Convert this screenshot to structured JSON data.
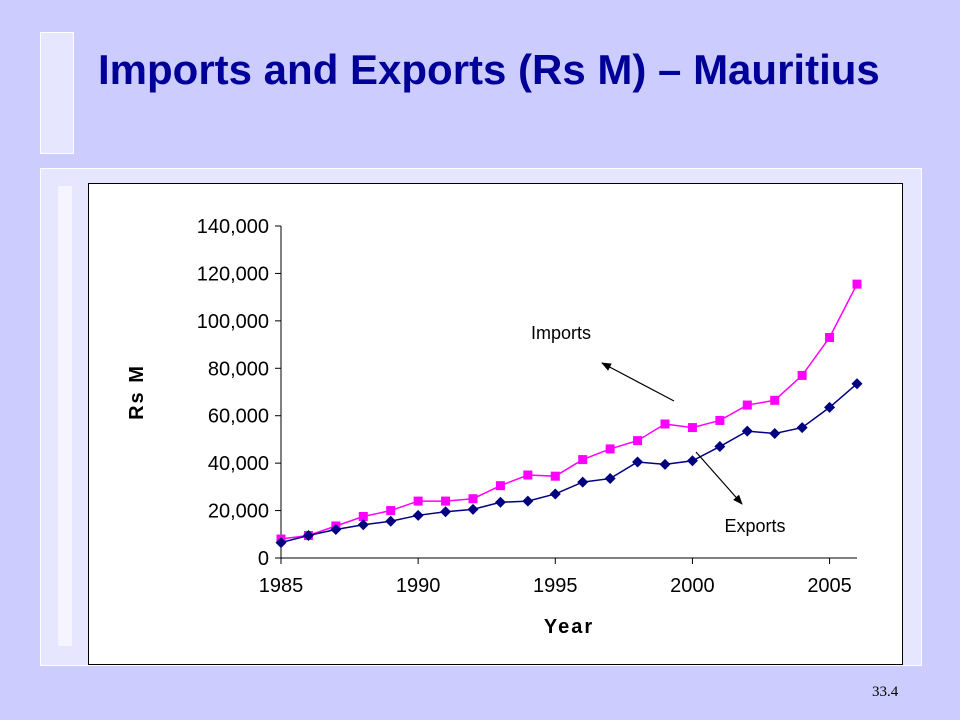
{
  "slide": {
    "title": "Imports and Exports (Rs M) – Mauritius",
    "page_number": "33.4"
  },
  "chart_data": {
    "type": "line",
    "title": "",
    "xlabel": "Year",
    "ylabel": "Rs M",
    "xlim": [
      1985,
      2006
    ],
    "ylim": [
      0,
      140000
    ],
    "x_ticks": [
      1985,
      1990,
      1995,
      2000,
      2005
    ],
    "x_tick_labels": [
      "1985",
      "1990",
      "1995",
      "2000",
      "2005"
    ],
    "y_ticks": [
      0,
      20000,
      40000,
      60000,
      80000,
      100000,
      120000,
      140000
    ],
    "y_tick_labels": [
      "0",
      "20,000",
      "40,000",
      "60,000",
      "80,000",
      "100,000",
      "120,000",
      "140,000"
    ],
    "grid": false,
    "legend": "none",
    "x": [
      1985,
      1986,
      1987,
      1988,
      1989,
      1990,
      1991,
      1992,
      1993,
      1994,
      1995,
      1996,
      1997,
      1998,
      1999,
      2000,
      2001,
      2002,
      2003,
      2004,
      2005,
      2006
    ],
    "series": [
      {
        "name": "Imports",
        "color": "#ff00ff",
        "marker": "square",
        "values": [
          8000,
          9500,
          13500,
          17500,
          20000,
          24000,
          24000,
          25000,
          30500,
          35000,
          34500,
          41500,
          46000,
          49500,
          56500,
          55000,
          58000,
          64500,
          66500,
          77000,
          93000,
          115500
        ]
      },
      {
        "name": "Exports",
        "color": "#000080",
        "marker": "diamond",
        "values": [
          6500,
          9500,
          12000,
          14000,
          15500,
          18000,
          19500,
          20500,
          23500,
          24000,
          27000,
          32000,
          33500,
          40500,
          39500,
          41000,
          47000,
          53500,
          52500,
          55000,
          63500,
          73500
        ]
      }
    ],
    "annotations": [
      {
        "text": "Imports",
        "series": "Imports",
        "at_x": 1999.5,
        "at_y": 68000
      },
      {
        "text": "Exports",
        "series": "Exports",
        "at_x": 2000,
        "at_y": 42000
      }
    ]
  }
}
